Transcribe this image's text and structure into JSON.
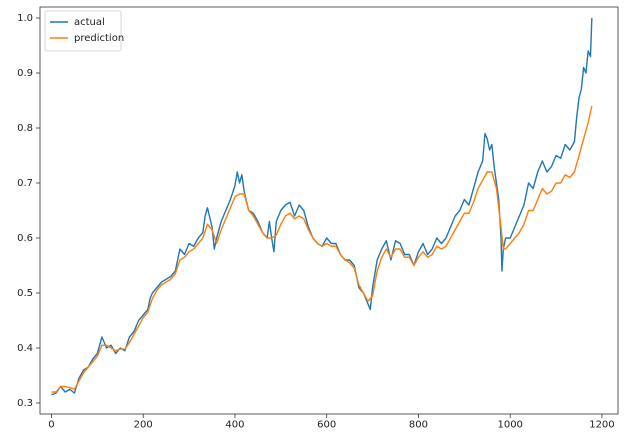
{
  "chart_data": {
    "type": "line",
    "title": "",
    "xlabel": "",
    "ylabel": "",
    "xlim": [
      -25,
      1235
    ],
    "ylim": [
      0.28,
      1.02
    ],
    "x_ticks": [
      0,
      200,
      400,
      600,
      800,
      1000,
      1200
    ],
    "x_tick_labels": [
      "0",
      "200",
      "400",
      "600",
      "800",
      "1000",
      "1200"
    ],
    "y_ticks": [
      0.3,
      0.4,
      0.5,
      0.6,
      0.7,
      0.8,
      0.9,
      1.0
    ],
    "y_tick_labels": [
      "0.3",
      "0.4",
      "0.5",
      "0.6",
      "0.7",
      "0.8",
      "0.9",
      "1.0"
    ],
    "grid": false,
    "legend_position": "top-left",
    "series": [
      {
        "name": "actual",
        "color": "#1f77b4",
        "points": [
          [
            0,
            0.315
          ],
          [
            10,
            0.318
          ],
          [
            20,
            0.33
          ],
          [
            30,
            0.32
          ],
          [
            40,
            0.325
          ],
          [
            50,
            0.318
          ],
          [
            60,
            0.345
          ],
          [
            70,
            0.36
          ],
          [
            80,
            0.365
          ],
          [
            90,
            0.38
          ],
          [
            100,
            0.39
          ],
          [
            110,
            0.42
          ],
          [
            115,
            0.41
          ],
          [
            120,
            0.4
          ],
          [
            130,
            0.405
          ],
          [
            140,
            0.39
          ],
          [
            150,
            0.4
          ],
          [
            160,
            0.395
          ],
          [
            170,
            0.42
          ],
          [
            180,
            0.43
          ],
          [
            190,
            0.45
          ],
          [
            200,
            0.46
          ],
          [
            210,
            0.47
          ],
          [
            215,
            0.49
          ],
          [
            220,
            0.5
          ],
          [
            230,
            0.51
          ],
          [
            240,
            0.52
          ],
          [
            250,
            0.525
          ],
          [
            260,
            0.53
          ],
          [
            270,
            0.54
          ],
          [
            280,
            0.58
          ],
          [
            290,
            0.57
          ],
          [
            300,
            0.59
          ],
          [
            310,
            0.585
          ],
          [
            320,
            0.6
          ],
          [
            330,
            0.61
          ],
          [
            335,
            0.64
          ],
          [
            340,
            0.655
          ],
          [
            350,
            0.62
          ],
          [
            355,
            0.58
          ],
          [
            360,
            0.6
          ],
          [
            370,
            0.63
          ],
          [
            380,
            0.65
          ],
          [
            390,
            0.67
          ],
          [
            400,
            0.695
          ],
          [
            405,
            0.72
          ],
          [
            410,
            0.7
          ],
          [
            415,
            0.715
          ],
          [
            420,
            0.685
          ],
          [
            430,
            0.65
          ],
          [
            440,
            0.645
          ],
          [
            450,
            0.63
          ],
          [
            460,
            0.61
          ],
          [
            470,
            0.6
          ],
          [
            475,
            0.63
          ],
          [
            480,
            0.6
          ],
          [
            485,
            0.575
          ],
          [
            490,
            0.63
          ],
          [
            500,
            0.65
          ],
          [
            510,
            0.66
          ],
          [
            520,
            0.665
          ],
          [
            530,
            0.64
          ],
          [
            540,
            0.66
          ],
          [
            550,
            0.65
          ],
          [
            560,
            0.62
          ],
          [
            570,
            0.6
          ],
          [
            580,
            0.59
          ],
          [
            590,
            0.585
          ],
          [
            600,
            0.6
          ],
          [
            610,
            0.59
          ],
          [
            620,
            0.59
          ],
          [
            630,
            0.57
          ],
          [
            640,
            0.56
          ],
          [
            650,
            0.56
          ],
          [
            660,
            0.55
          ],
          [
            670,
            0.51
          ],
          [
            680,
            0.5
          ],
          [
            690,
            0.48
          ],
          [
            695,
            0.47
          ],
          [
            700,
            0.51
          ],
          [
            710,
            0.56
          ],
          [
            720,
            0.58
          ],
          [
            730,
            0.595
          ],
          [
            740,
            0.56
          ],
          [
            750,
            0.595
          ],
          [
            760,
            0.59
          ],
          [
            770,
            0.57
          ],
          [
            780,
            0.57
          ],
          [
            790,
            0.55
          ],
          [
            800,
            0.575
          ],
          [
            810,
            0.59
          ],
          [
            820,
            0.57
          ],
          [
            830,
            0.58
          ],
          [
            840,
            0.6
          ],
          [
            850,
            0.59
          ],
          [
            860,
            0.6
          ],
          [
            870,
            0.62
          ],
          [
            880,
            0.64
          ],
          [
            890,
            0.65
          ],
          [
            900,
            0.67
          ],
          [
            910,
            0.66
          ],
          [
            920,
            0.69
          ],
          [
            930,
            0.72
          ],
          [
            940,
            0.74
          ],
          [
            945,
            0.79
          ],
          [
            950,
            0.78
          ],
          [
            955,
            0.76
          ],
          [
            960,
            0.77
          ],
          [
            965,
            0.73
          ],
          [
            970,
            0.7
          ],
          [
            975,
            0.67
          ],
          [
            980,
            0.6
          ],
          [
            982,
            0.54
          ],
          [
            985,
            0.58
          ],
          [
            990,
            0.6
          ],
          [
            1000,
            0.6
          ],
          [
            1010,
            0.62
          ],
          [
            1020,
            0.64
          ],
          [
            1030,
            0.66
          ],
          [
            1040,
            0.7
          ],
          [
            1050,
            0.69
          ],
          [
            1060,
            0.72
          ],
          [
            1070,
            0.74
          ],
          [
            1080,
            0.72
          ],
          [
            1090,
            0.73
          ],
          [
            1100,
            0.75
          ],
          [
            1110,
            0.745
          ],
          [
            1120,
            0.77
          ],
          [
            1130,
            0.76
          ],
          [
            1140,
            0.775
          ],
          [
            1145,
            0.82
          ],
          [
            1150,
            0.855
          ],
          [
            1155,
            0.87
          ],
          [
            1160,
            0.91
          ],
          [
            1165,
            0.9
          ],
          [
            1170,
            0.94
          ],
          [
            1175,
            0.93
          ],
          [
            1178,
            1.0
          ]
        ]
      },
      {
        "name": "prediction",
        "color": "#ff7f0e",
        "points": [
          [
            0,
            0.32
          ],
          [
            10,
            0.32
          ],
          [
            20,
            0.33
          ],
          [
            30,
            0.33
          ],
          [
            40,
            0.328
          ],
          [
            50,
            0.325
          ],
          [
            60,
            0.34
          ],
          [
            70,
            0.355
          ],
          [
            80,
            0.365
          ],
          [
            90,
            0.375
          ],
          [
            100,
            0.385
          ],
          [
            110,
            0.405
          ],
          [
            120,
            0.405
          ],
          [
            130,
            0.4
          ],
          [
            140,
            0.395
          ],
          [
            150,
            0.398
          ],
          [
            160,
            0.398
          ],
          [
            170,
            0.41
          ],
          [
            180,
            0.425
          ],
          [
            190,
            0.44
          ],
          [
            200,
            0.455
          ],
          [
            210,
            0.465
          ],
          [
            220,
            0.49
          ],
          [
            230,
            0.505
          ],
          [
            240,
            0.515
          ],
          [
            250,
            0.52
          ],
          [
            260,
            0.525
          ],
          [
            270,
            0.535
          ],
          [
            280,
            0.56
          ],
          [
            290,
            0.565
          ],
          [
            300,
            0.575
          ],
          [
            310,
            0.58
          ],
          [
            320,
            0.59
          ],
          [
            330,
            0.6
          ],
          [
            340,
            0.625
          ],
          [
            350,
            0.615
          ],
          [
            360,
            0.59
          ],
          [
            370,
            0.615
          ],
          [
            380,
            0.635
          ],
          [
            390,
            0.655
          ],
          [
            400,
            0.675
          ],
          [
            410,
            0.68
          ],
          [
            420,
            0.68
          ],
          [
            430,
            0.65
          ],
          [
            440,
            0.64
          ],
          [
            450,
            0.625
          ],
          [
            460,
            0.61
          ],
          [
            470,
            0.6
          ],
          [
            480,
            0.6
          ],
          [
            490,
            0.605
          ],
          [
            500,
            0.625
          ],
          [
            510,
            0.64
          ],
          [
            520,
            0.645
          ],
          [
            530,
            0.635
          ],
          [
            540,
            0.64
          ],
          [
            550,
            0.635
          ],
          [
            560,
            0.615
          ],
          [
            570,
            0.6
          ],
          [
            580,
            0.59
          ],
          [
            590,
            0.585
          ],
          [
            600,
            0.59
          ],
          [
            610,
            0.585
          ],
          [
            620,
            0.585
          ],
          [
            630,
            0.57
          ],
          [
            640,
            0.56
          ],
          [
            650,
            0.555
          ],
          [
            660,
            0.545
          ],
          [
            670,
            0.515
          ],
          [
            680,
            0.5
          ],
          [
            690,
            0.485
          ],
          [
            700,
            0.495
          ],
          [
            710,
            0.54
          ],
          [
            720,
            0.565
          ],
          [
            730,
            0.58
          ],
          [
            740,
            0.565
          ],
          [
            750,
            0.58
          ],
          [
            760,
            0.58
          ],
          [
            770,
            0.565
          ],
          [
            780,
            0.565
          ],
          [
            790,
            0.55
          ],
          [
            800,
            0.565
          ],
          [
            810,
            0.575
          ],
          [
            820,
            0.565
          ],
          [
            830,
            0.57
          ],
          [
            840,
            0.585
          ],
          [
            850,
            0.58
          ],
          [
            860,
            0.585
          ],
          [
            870,
            0.6
          ],
          [
            880,
            0.615
          ],
          [
            890,
            0.63
          ],
          [
            900,
            0.645
          ],
          [
            910,
            0.645
          ],
          [
            920,
            0.665
          ],
          [
            930,
            0.69
          ],
          [
            940,
            0.705
          ],
          [
            950,
            0.72
          ],
          [
            960,
            0.72
          ],
          [
            970,
            0.69
          ],
          [
            980,
            0.62
          ],
          [
            985,
            0.58
          ],
          [
            990,
            0.58
          ],
          [
            1000,
            0.59
          ],
          [
            1010,
            0.6
          ],
          [
            1020,
            0.61
          ],
          [
            1030,
            0.625
          ],
          [
            1040,
            0.65
          ],
          [
            1050,
            0.65
          ],
          [
            1060,
            0.67
          ],
          [
            1070,
            0.69
          ],
          [
            1080,
            0.68
          ],
          [
            1090,
            0.685
          ],
          [
            1100,
            0.7
          ],
          [
            1110,
            0.7
          ],
          [
            1120,
            0.715
          ],
          [
            1130,
            0.71
          ],
          [
            1140,
            0.72
          ],
          [
            1150,
            0.75
          ],
          [
            1160,
            0.78
          ],
          [
            1170,
            0.81
          ],
          [
            1178,
            0.84
          ]
        ]
      }
    ]
  }
}
